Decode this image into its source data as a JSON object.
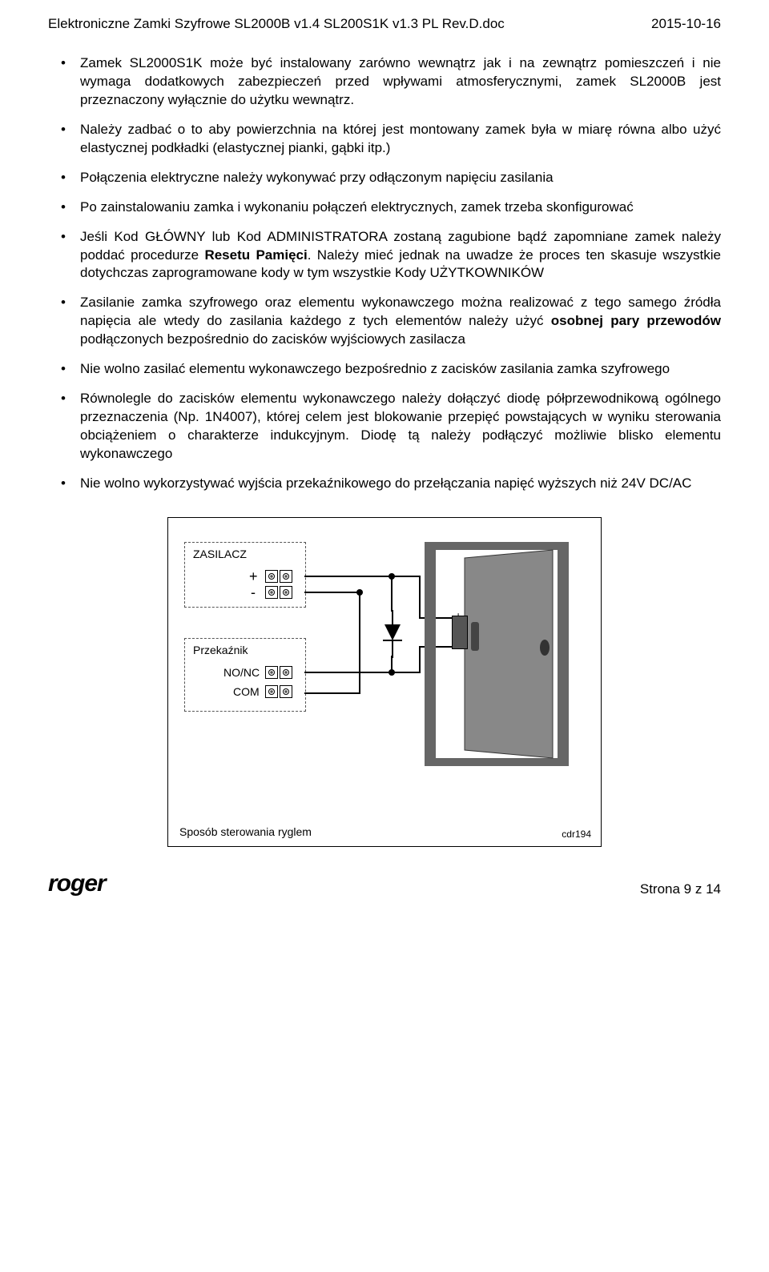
{
  "header": {
    "left": "Elektroniczne Zamki Szyfrowe SL2000B v1.4 SL200S1K v1.3 PL Rev.D.doc",
    "right": "2015-10-16"
  },
  "bullets": [
    "Zamek SL2000S1K może być instalowany zarówno wewnątrz jak i na zewnątrz pomieszczeń i nie wymaga dodatkowych zabezpieczeń przed wpływami atmosferycznymi, zamek SL2000B jest przeznaczony wyłącznie do użytku wewnątrz.",
    "Należy zadbać o to aby powierzchnia na której jest montowany zamek była w miarę równa albo użyć elastycznej podkładki (elastycznej pianki, gąbki itp.)",
    "Połączenia elektryczne należy wykonywać przy odłączonym napięciu zasilania",
    "Po zainstalowaniu zamka i wykonaniu połączeń elektrycznych, zamek trzeba skonfigurować",
    "Jeśli Kod GŁÓWNY lub Kod ADMINISTRATORA zostaną zagubione bądź zapomniane zamek należy poddać procedurze <b>Resetu Pamięci</b>. Należy mieć jednak na uwadze że proces ten skasuje wszystkie dotychczas zaprogramowane kody w tym wszystkie Kody UŻYTKOWNIKÓW",
    "Zasilanie zamka szyfrowego oraz elementu wykonawczego można realizować z tego samego źródła napięcia ale wtedy do zasilania każdego z tych elementów należy użyć <b>osobnej pary przewodów</b> podłączonych bezpośrednio do zacisków wyjściowych zasilacza",
    "Nie wolno zasilać elementu wykonawczego  bezpośrednio z zacisków zasilania zamka szyfrowego",
    "Równolegle do zacisków elementu wykonawczego należy dołączyć diodę półprzewodnikową ogólnego przeznaczenia (Np. 1N4007), której celem jest blokowanie przepięć powstających w wyniku sterowania obciążeniem o charakterze indukcyjnym. Diodę tą należy podłączyć możliwie blisko elementu wykonawczego",
    "Nie wolno wykorzystywać wyjścia przekaźnikowego do przełączania napięć wyższych niż 24V DC/AC"
  ],
  "diagram": {
    "zasilacz_label": "ZASILACZ",
    "plus": "+",
    "minus": "-",
    "przekaznik_label": "Przekaźnik",
    "nonc": "NO/NC",
    "com": "COM",
    "caption": "Sposób sterowania ryglem",
    "ref": "cdr194",
    "door_plus": "+",
    "door_minus": "-"
  },
  "footer": {
    "logo": "roger",
    "page": "Strona 9 z 14"
  }
}
